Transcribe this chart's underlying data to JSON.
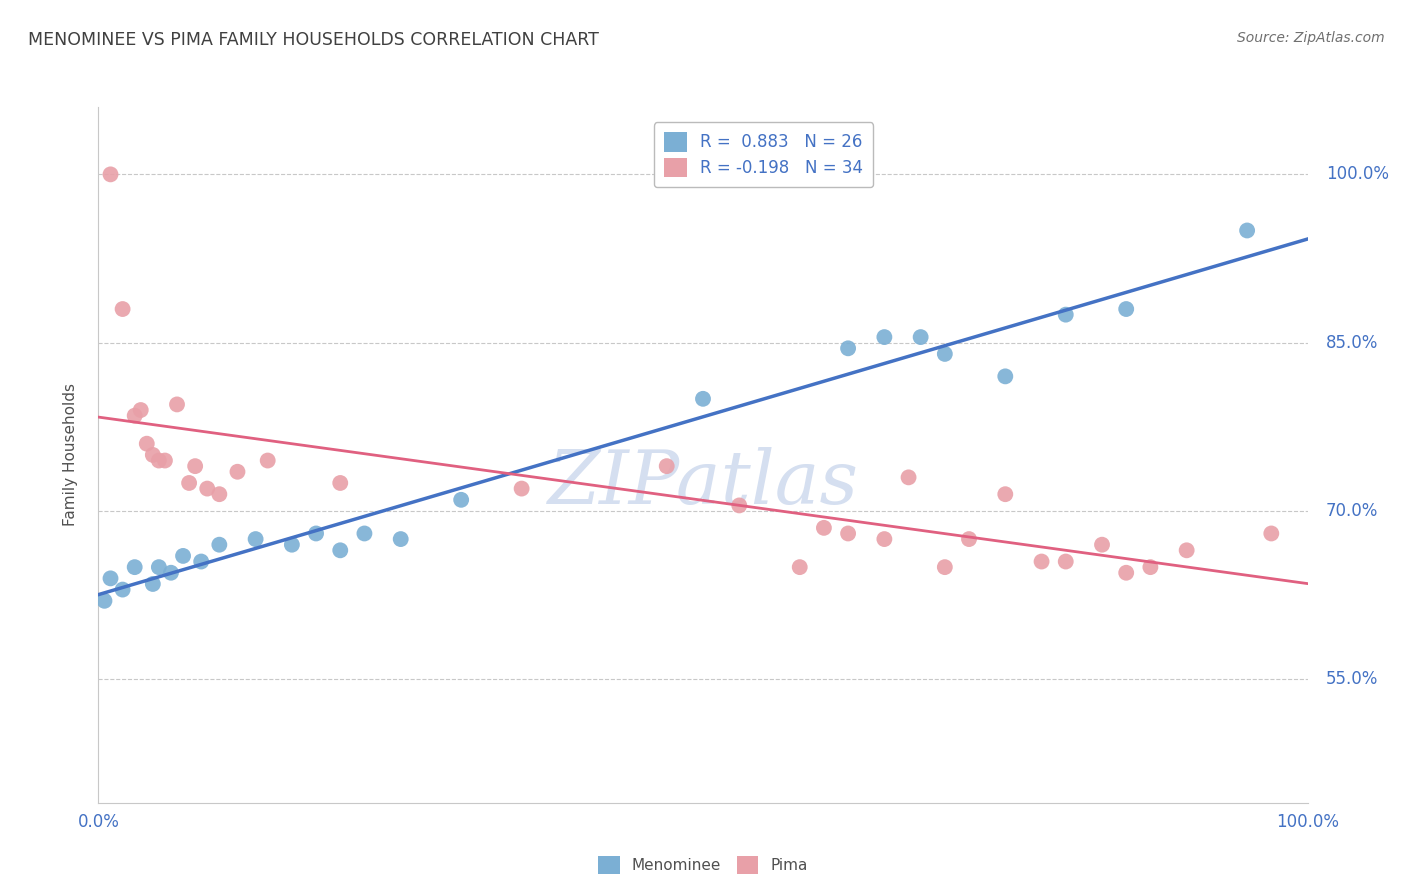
{
  "title": "MENOMINEE VS PIMA FAMILY HOUSEHOLDS CORRELATION CHART",
  "source_text": "Source: ZipAtlas.com",
  "ylabel": "Family Households",
  "right_yticks": [
    55.0,
    70.0,
    85.0,
    100.0
  ],
  "right_ytick_labels": [
    "55.0%",
    "70.0%",
    "85.0%",
    "100.0%"
  ],
  "xmin": 0.0,
  "xmax": 100.0,
  "ymin": 44.0,
  "ymax": 106.0,
  "menominee_r": 0.883,
  "menominee_n": 26,
  "pima_r": -0.198,
  "pima_n": 34,
  "menominee_color": "#7bafd4",
  "pima_color": "#e8a0a8",
  "menominee_line_color": "#4472c4",
  "pima_line_color": "#e06080",
  "background_color": "#ffffff",
  "grid_color": "#c8c8c8",
  "title_color": "#404040",
  "axis_label_color": "#4472c4",
  "watermark_color": "#d5dff0",
  "menominee_x": [
    0.5,
    1.0,
    2.0,
    3.0,
    4.5,
    5.0,
    6.0,
    7.0,
    8.5,
    10.0,
    13.0,
    16.0,
    18.0,
    20.0,
    22.0,
    25.0,
    30.0,
    50.0,
    62.0,
    65.0,
    68.0,
    70.0,
    75.0,
    80.0,
    85.0,
    95.0
  ],
  "menominee_y": [
    62.0,
    64.0,
    63.0,
    65.0,
    63.5,
    65.0,
    64.5,
    66.0,
    65.5,
    67.0,
    67.5,
    67.0,
    68.0,
    66.5,
    68.0,
    67.5,
    71.0,
    80.0,
    84.5,
    85.5,
    85.5,
    84.0,
    82.0,
    87.5,
    88.0,
    95.0
  ],
  "pima_x": [
    1.0,
    2.0,
    3.0,
    3.5,
    4.0,
    4.5,
    5.0,
    5.5,
    6.5,
    7.5,
    8.0,
    9.0,
    10.0,
    11.5,
    14.0,
    20.0,
    35.0,
    47.0,
    53.0,
    58.0,
    60.0,
    62.0,
    65.0,
    67.0,
    70.0,
    72.0,
    75.0,
    78.0,
    80.0,
    83.0,
    85.0,
    87.0,
    90.0,
    97.0
  ],
  "pima_y": [
    100.0,
    88.0,
    78.5,
    79.0,
    76.0,
    75.0,
    74.5,
    74.5,
    79.5,
    72.5,
    74.0,
    72.0,
    71.5,
    73.5,
    74.5,
    72.5,
    72.0,
    74.0,
    70.5,
    65.0,
    68.5,
    68.0,
    67.5,
    73.0,
    65.0,
    67.5,
    71.5,
    65.5,
    65.5,
    67.0,
    64.5,
    65.0,
    66.5,
    68.0
  ]
}
